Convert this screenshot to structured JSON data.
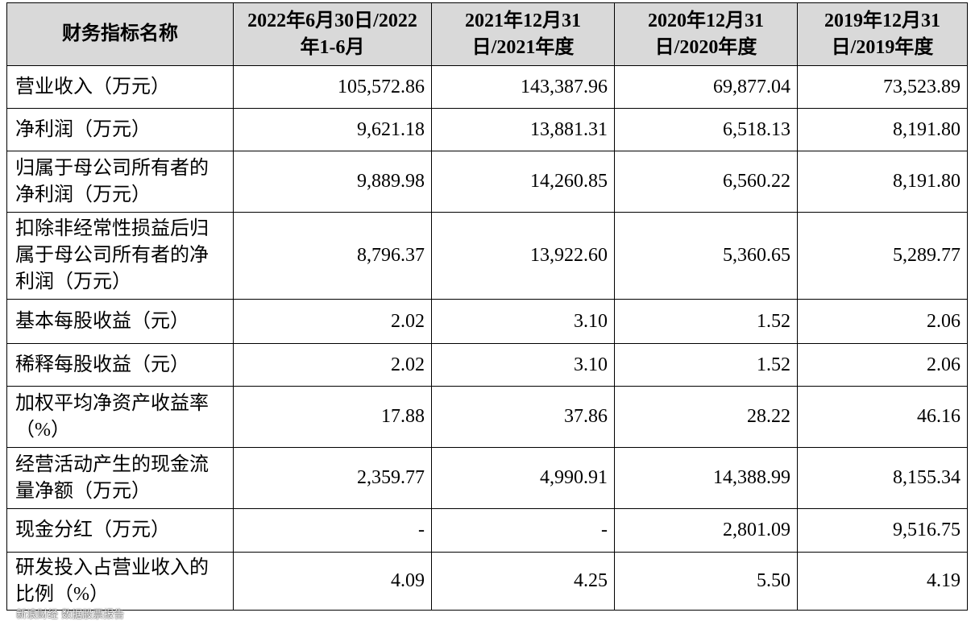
{
  "table": {
    "headers": [
      "财务指标名称",
      "2022年6月30日/2022年1-6月",
      "2021年12月31日/2021年度",
      "2020年12月31日/2020年度",
      "2019年12月31日/2019年度"
    ],
    "rows": [
      {
        "label": "营业收入（万元）",
        "values": [
          "105,572.86",
          "143,387.96",
          "69,877.04",
          "73,523.89"
        ]
      },
      {
        "label": "净利润（万元）",
        "values": [
          "9,621.18",
          "13,881.31",
          "6,518.13",
          "8,191.80"
        ]
      },
      {
        "label": "归属于母公司所有者的净利润（万元）",
        "values": [
          "9,889.98",
          "14,260.85",
          "6,560.22",
          "8,191.80"
        ]
      },
      {
        "label": "扣除非经常性损益后归属于母公司所有者的净利润（万元）",
        "values": [
          "8,796.37",
          "13,922.60",
          "5,360.65",
          "5,289.77"
        ]
      },
      {
        "label": "基本每股收益（元）",
        "values": [
          "2.02",
          "3.10",
          "1.52",
          "2.06"
        ]
      },
      {
        "label": "稀释每股收益（元）",
        "values": [
          "2.02",
          "3.10",
          "1.52",
          "2.06"
        ]
      },
      {
        "label": "加权平均净资产收益率（%）",
        "values": [
          "17.88",
          "37.86",
          "28.22",
          "46.16"
        ]
      },
      {
        "label": "经营活动产生的现金流量净额（万元）",
        "values": [
          "2,359.77",
          "4,990.91",
          "14,388.99",
          "8,155.34"
        ]
      },
      {
        "label": "现金分红（万元）",
        "values": [
          "-",
          "-",
          "2,801.09",
          "9,516.75"
        ]
      },
      {
        "label": "研发投入占营业收入的比例（%）",
        "values": [
          "4.09",
          "4.25",
          "5.50",
          "4.19"
        ]
      }
    ]
  },
  "watermark": "新浪财经 数据股票报告"
}
